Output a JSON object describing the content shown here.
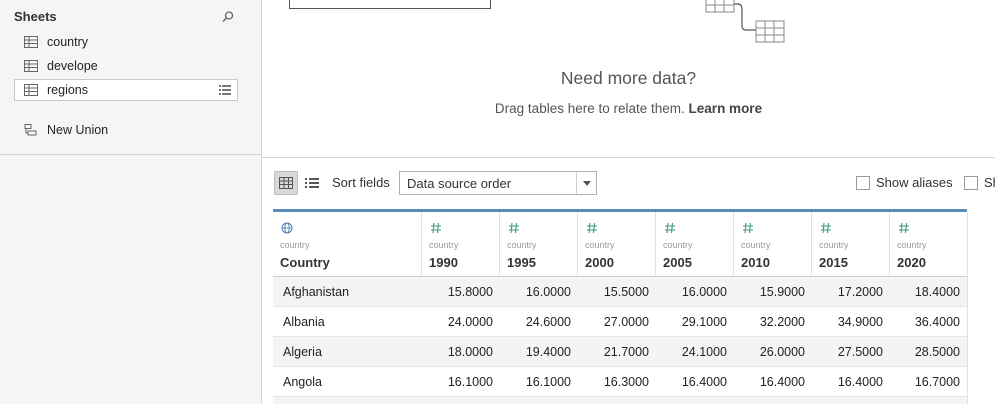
{
  "sidebar": {
    "title": "Sheets",
    "items": [
      {
        "label": "country",
        "icon": "table-icon"
      },
      {
        "label": "develope",
        "icon": "table-icon"
      },
      {
        "label": "regions",
        "icon": "table-icon",
        "active": true
      }
    ],
    "union_label": "New Union"
  },
  "canvas": {
    "headline": "Need more data?",
    "hint": "Drag tables here to relate them.",
    "learn_more": "Learn more"
  },
  "toolbar": {
    "sort_label": "Sort fields",
    "sort_value": "Data source order",
    "show_aliases": "Show aliases",
    "show_hidden_cut": "Sh"
  },
  "grid": {
    "columns": [
      {
        "source": "country",
        "name": "Country",
        "type": "geo"
      },
      {
        "source": "country",
        "name": "1990",
        "type": "number"
      },
      {
        "source": "country",
        "name": "1995",
        "type": "number"
      },
      {
        "source": "country",
        "name": "2000",
        "type": "number"
      },
      {
        "source": "country",
        "name": "2005",
        "type": "number"
      },
      {
        "source": "country",
        "name": "2010",
        "type": "number"
      },
      {
        "source": "country",
        "name": "2015",
        "type": "number"
      },
      {
        "source": "country",
        "name": "2020",
        "type": "number"
      }
    ],
    "rows": [
      [
        "Afghanistan",
        "15.8000",
        "16.0000",
        "15.5000",
        "16.0000",
        "15.9000",
        "17.2000",
        "18.4000"
      ],
      [
        "Albania",
        "24.0000",
        "24.6000",
        "27.0000",
        "29.1000",
        "32.2000",
        "34.9000",
        "36.4000"
      ],
      [
        "Algeria",
        "18.0000",
        "19.4000",
        "21.7000",
        "24.1000",
        "26.0000",
        "27.5000",
        "28.5000"
      ],
      [
        "Angola",
        "16.1000",
        "16.1000",
        "16.3000",
        "16.4000",
        "16.4000",
        "16.4000",
        "16.7000"
      ]
    ]
  },
  "colors": {
    "accent_bar": "#5b8db8",
    "number_icon": "#3a9a82",
    "geo_icon": "#4a7fb0"
  }
}
